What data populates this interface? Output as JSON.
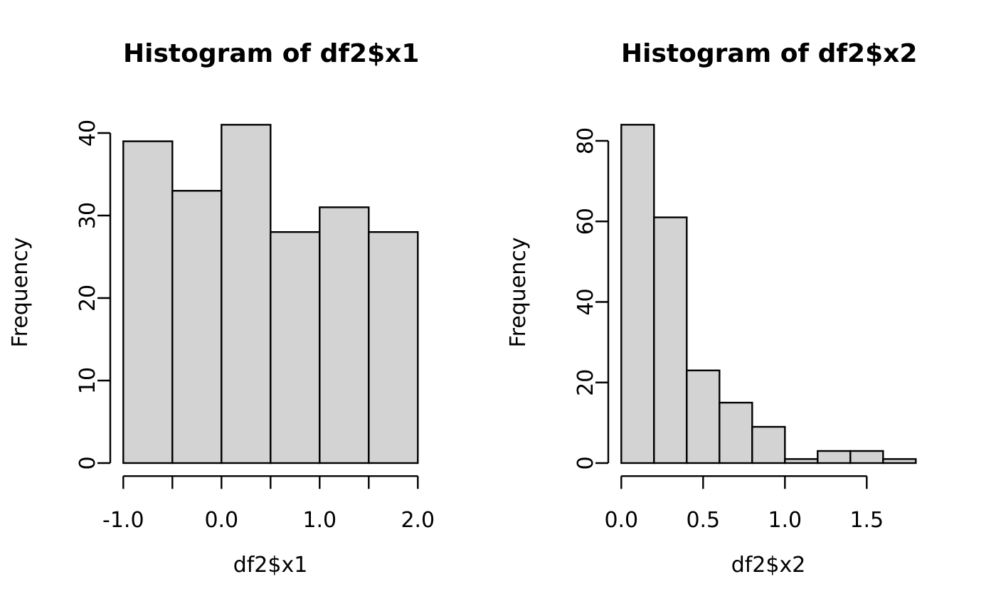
{
  "figure": {
    "background": "#ffffff",
    "text_color": "#000000"
  },
  "chart_data": [
    {
      "type": "bar",
      "subtype": "histogram",
      "title": "Histogram of df2$x1",
      "xlabel": "df2$x1",
      "ylabel": "Frequency",
      "bar_fill": "#d3d3d3",
      "bar_border": "#000000",
      "bin_start": -1.0,
      "bin_width": 0.5,
      "bin_edges": [
        -1.0,
        -0.5,
        0.0,
        0.5,
        1.0,
        1.5,
        2.0
      ],
      "categories": [
        "[-1.0,-0.5]",
        "(-0.5,0.0]",
        "(0.0,0.5]",
        "(0.5,1.0]",
        "(1.0,1.5]",
        "(1.5,2.0]"
      ],
      "values": [
        39,
        33,
        41,
        28,
        31,
        28
      ],
      "x_ticks": [
        {
          "value": -1.0,
          "label": "-1.0"
        },
        {
          "value": -0.5,
          "label": ""
        },
        {
          "value": 0.0,
          "label": "0.0"
        },
        {
          "value": 0.5,
          "label": ""
        },
        {
          "value": 1.0,
          "label": "1.0"
        },
        {
          "value": 1.5,
          "label": ""
        },
        {
          "value": 2.0,
          "label": "2.0"
        }
      ],
      "y_ticks": [
        {
          "value": 0,
          "label": "0"
        },
        {
          "value": 10,
          "label": "10"
        },
        {
          "value": 20,
          "label": "20"
        },
        {
          "value": 30,
          "label": "30"
        },
        {
          "value": 40,
          "label": "40"
        }
      ],
      "xlim": [
        -1.0,
        2.0
      ],
      "ylim": [
        0,
        41
      ],
      "grid": false,
      "legend": null
    },
    {
      "type": "bar",
      "subtype": "histogram",
      "title": "Histogram of df2$x2",
      "xlabel": "df2$x2",
      "ylabel": "Frequency",
      "bar_fill": "#d3d3d3",
      "bar_border": "#000000",
      "bin_start": 0.0,
      "bin_width": 0.2,
      "bin_edges": [
        0.0,
        0.2,
        0.4,
        0.6,
        0.8,
        1.0,
        1.2,
        1.4,
        1.6,
        1.8
      ],
      "categories": [
        "[0.0,0.2]",
        "(0.2,0.4]",
        "(0.4,0.6]",
        "(0.6,0.8]",
        "(0.8,1.0]",
        "(1.0,1.2]",
        "(1.2,1.4]",
        "(1.4,1.6]",
        "(1.6,1.8]"
      ],
      "values": [
        84,
        61,
        23,
        15,
        9,
        1,
        3,
        3,
        1
      ],
      "x_ticks": [
        {
          "value": 0.0,
          "label": "0.0"
        },
        {
          "value": 0.5,
          "label": "0.5"
        },
        {
          "value": 1.0,
          "label": "1.0"
        },
        {
          "value": 1.5,
          "label": "1.5"
        }
      ],
      "y_ticks": [
        {
          "value": 0,
          "label": "0"
        },
        {
          "value": 20,
          "label": "20"
        },
        {
          "value": 40,
          "label": "40"
        },
        {
          "value": 60,
          "label": "60"
        },
        {
          "value": 80,
          "label": "80"
        }
      ],
      "xlim": [
        0.0,
        1.8
      ],
      "ylim": [
        0,
        84
      ],
      "grid": false,
      "legend": null
    }
  ]
}
